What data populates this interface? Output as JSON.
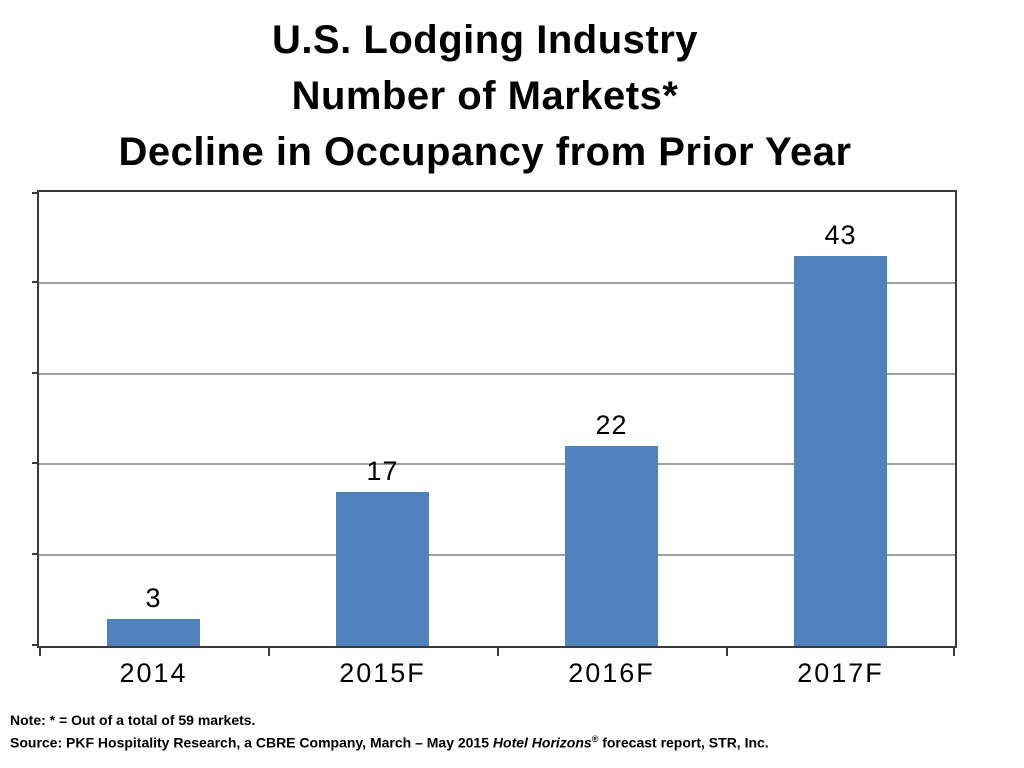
{
  "title": {
    "line1": "U.S. Lodging Industry",
    "line2": "Number of Markets*",
    "line3": "Decline in Occupancy from Prior Year"
  },
  "chart_data": {
    "type": "bar",
    "title": "U.S. Lodging Industry — Number of Markets* — Decline in Occupancy from Prior Year",
    "categories": [
      "2014",
      "2015F",
      "2016F",
      "2017F"
    ],
    "values": [
      3,
      17,
      22,
      43
    ],
    "data_labels": [
      "3",
      "17",
      "22",
      "43"
    ],
    "xlabel": "",
    "ylabel": "",
    "ylim": [
      0,
      50
    ],
    "gridline_interval": 10,
    "grid": true,
    "legend": false,
    "bar_color": "#4f81bd",
    "gridline_color": "#a0a0a0",
    "axis_color": "#3a3a3a"
  },
  "footnotes": {
    "note": "Note: * = Out of a total of 59 markets.",
    "source_prefix": "Source: PKF Hospitality Research, a CBRE Company, March – May 2015 ",
    "source_italic": "Hotel Horizons",
    "source_superscript": "®",
    "source_suffix": " forecast report, STR, Inc."
  }
}
